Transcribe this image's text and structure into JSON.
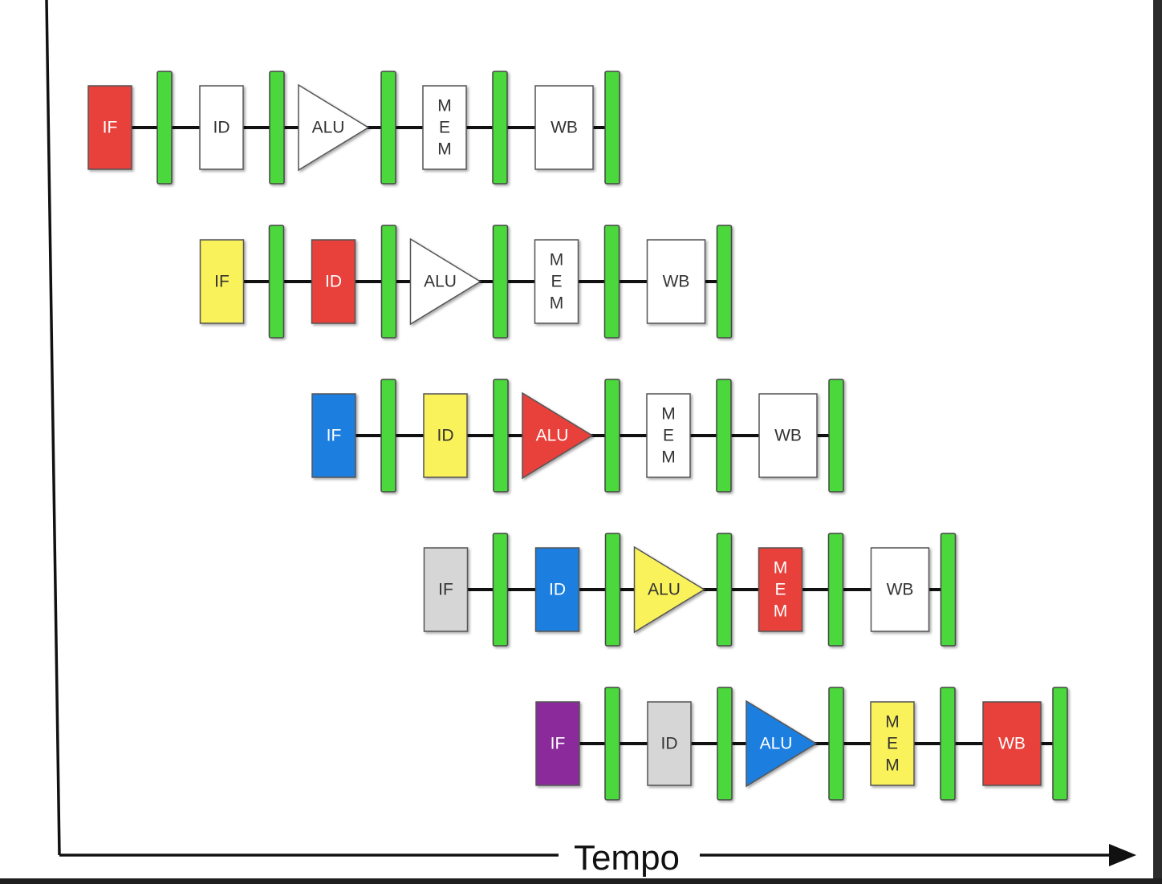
{
  "time_axis": {
    "label": "Tempo"
  },
  "stage_labels": {
    "IF": "IF",
    "ID": "ID",
    "ALU": "ALU",
    "MEM": [
      "M",
      "E",
      "M"
    ],
    "WB": "WB"
  },
  "colors": {
    "register": "#4cd83c",
    "red": "#e8413a",
    "yellow": "#faf25a",
    "blue": "#1e7fe0",
    "gray": "#d6d6d6",
    "purple": "#8a2a9b",
    "white": "#ffffff"
  },
  "instructions": [
    {
      "stages": {
        "IF": "red",
        "ID": "white",
        "ALU": "white",
        "MEM": "white",
        "WB": "white"
      }
    },
    {
      "stages": {
        "IF": "yellow",
        "ID": "red",
        "ALU": "white",
        "MEM": "white",
        "WB": "white"
      }
    },
    {
      "stages": {
        "IF": "blue",
        "ID": "yellow",
        "ALU": "red",
        "MEM": "white",
        "WB": "white"
      }
    },
    {
      "stages": {
        "IF": "gray",
        "ID": "blue",
        "ALU": "yellow",
        "MEM": "red",
        "WB": "white"
      }
    },
    {
      "stages": {
        "IF": "purple",
        "ID": "gray",
        "ALU": "blue",
        "MEM": "yellow",
        "WB": "red"
      }
    }
  ]
}
